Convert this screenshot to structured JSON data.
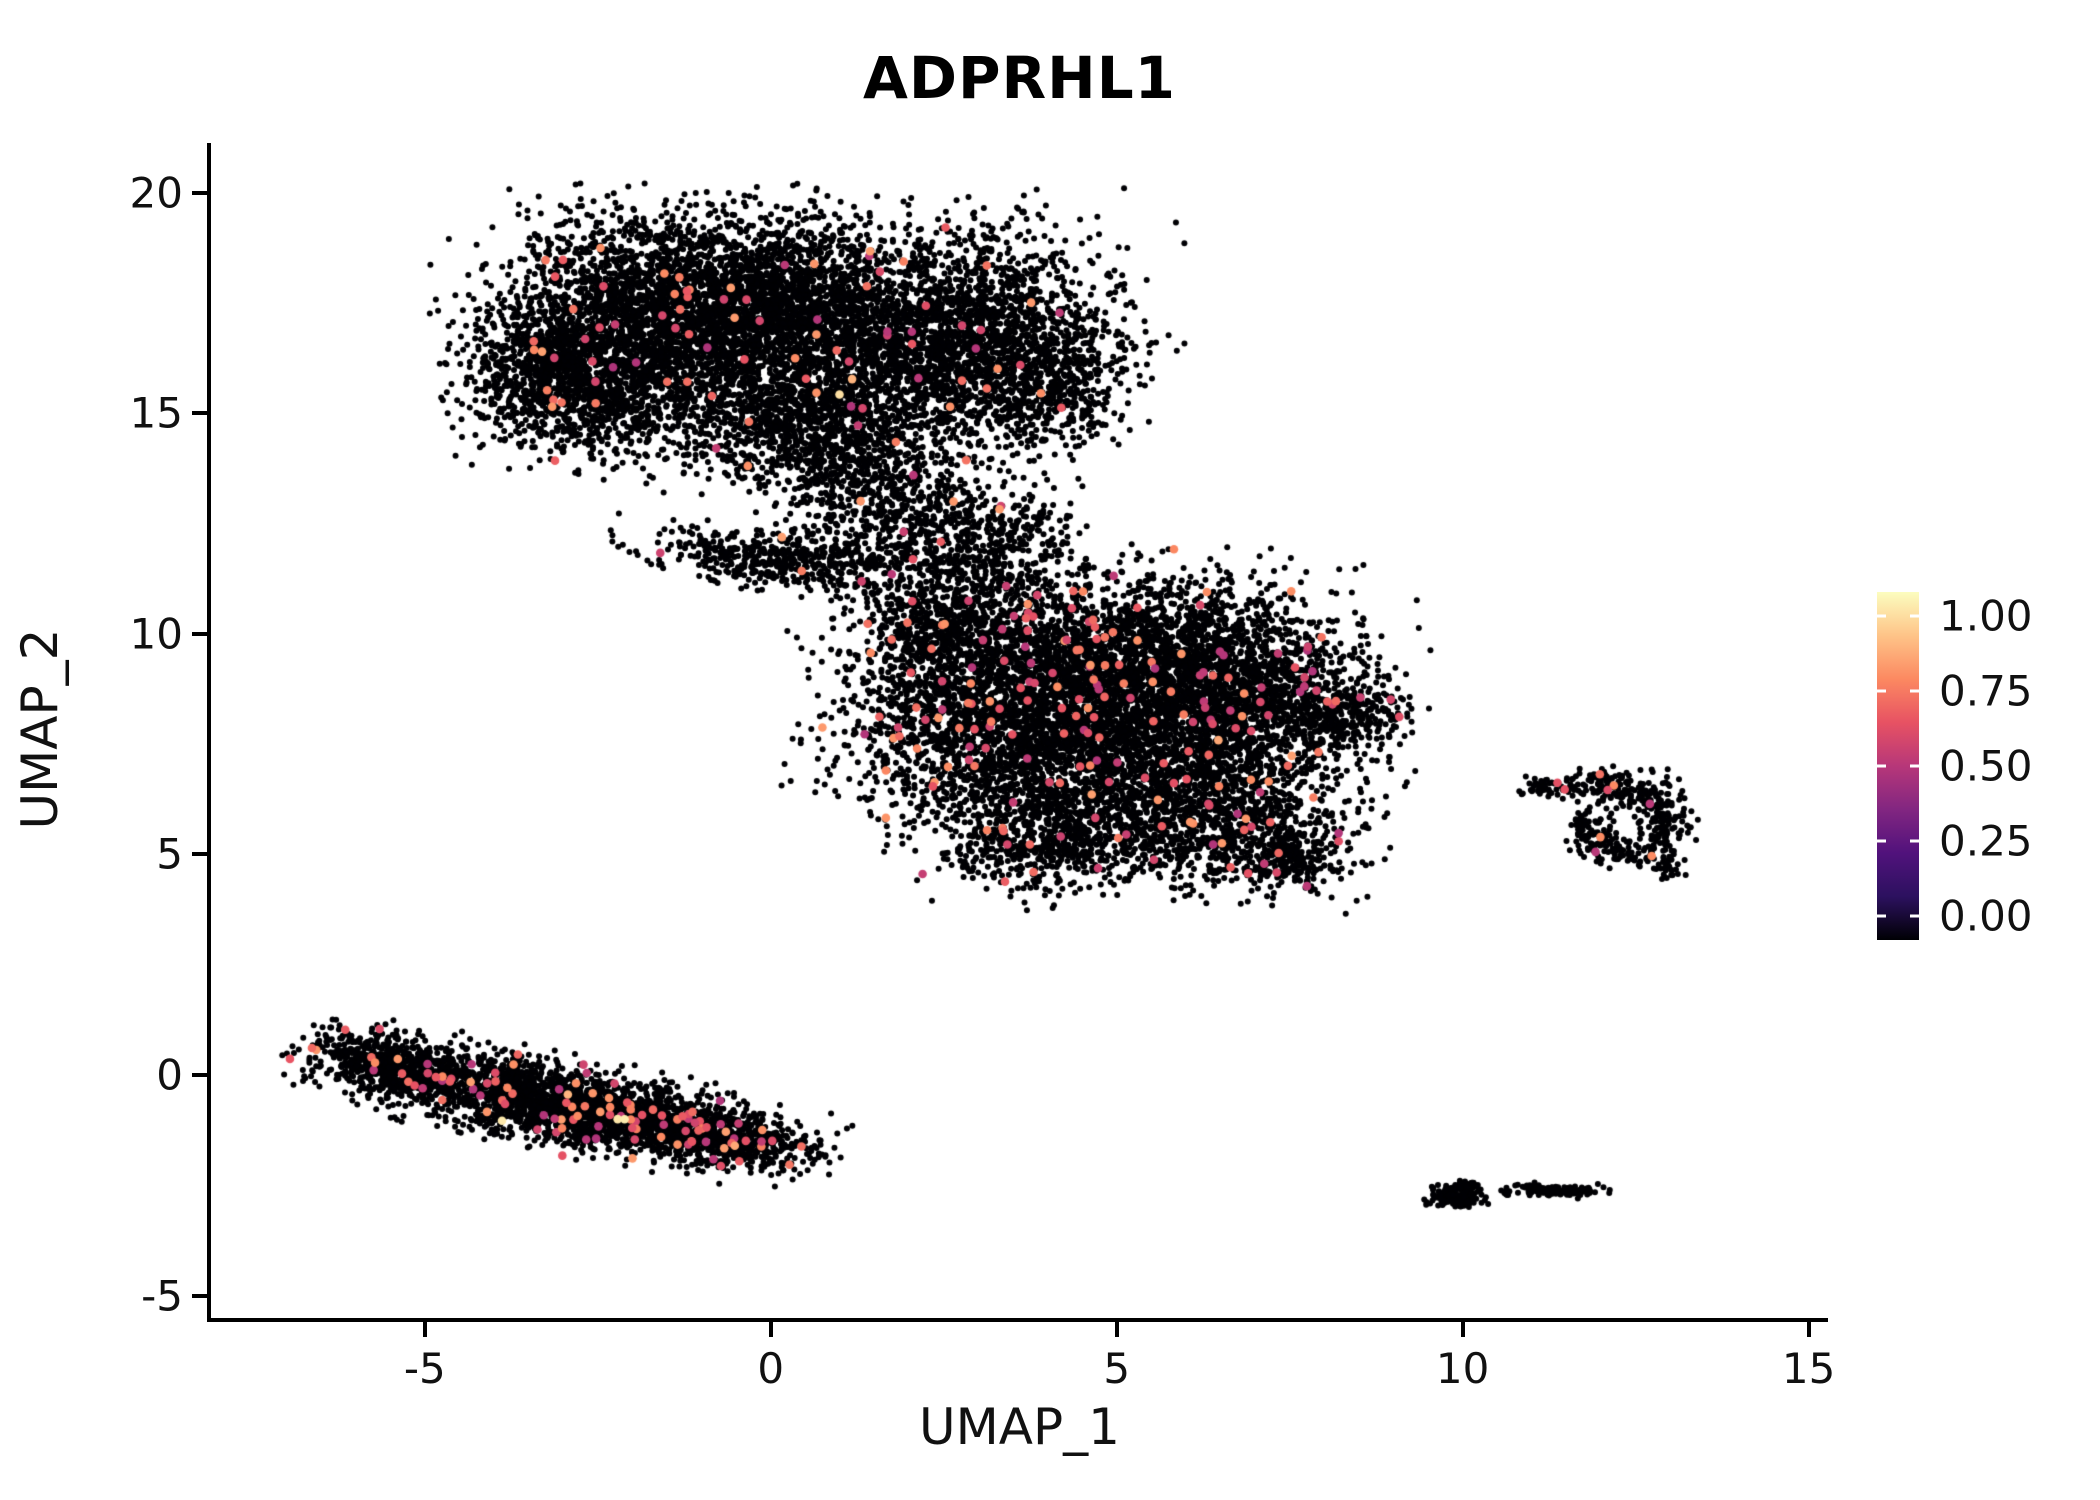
{
  "chart_data": {
    "type": "scatter",
    "title": "ADPRHL1",
    "xlabel": "UMAP_1",
    "ylabel": "UMAP_2",
    "xlim": [
      -8.09,
      15.28
    ],
    "ylim": [
      -5.51,
      21.13
    ],
    "x_ticks": [
      -5,
      0,
      5,
      10,
      15
    ],
    "x_tick_labels": [
      "-5",
      "0",
      "5",
      "10",
      "15"
    ],
    "y_ticks": [
      -5,
      0,
      5,
      10,
      15,
      20
    ],
    "y_tick_labels": [
      "-5",
      "0",
      "5",
      "10",
      "15",
      "20"
    ],
    "grid": false,
    "point_radius": 3,
    "highlight_radius": 4.3,
    "point_color_zero": "#000004",
    "seed": 1234,
    "legend": {
      "position": "right",
      "ticks": [
        "1.00",
        "0.75",
        "0.50",
        "0.25",
        "0.00"
      ],
      "tick_values": [
        1.0,
        0.75,
        0.5,
        0.25,
        0.0
      ],
      "colormap": "magma",
      "colormap_stops": [
        [
          0,
          "#000004"
        ],
        [
          0.125,
          "#2c115f"
        ],
        [
          0.25,
          "#51127c"
        ],
        [
          0.375,
          "#822681"
        ],
        [
          0.5,
          "#b73779"
        ],
        [
          0.625,
          "#e75263"
        ],
        [
          0.75,
          "#fc8961"
        ],
        [
          0.875,
          "#fec488"
        ],
        [
          1,
          "#fcfdbf"
        ]
      ]
    },
    "clusters": [
      {
        "cx": -1.8,
        "cy": 16.9,
        "sx": 1.15,
        "sy": 1.25,
        "rot": 0,
        "n": 2400,
        "cf": 0.012
      },
      {
        "cx": -0.1,
        "cy": 17.6,
        "sx": 1.3,
        "sy": 0.95,
        "rot": 0,
        "n": 2000,
        "cf": 0.012
      },
      {
        "cx": 1.3,
        "cy": 16.3,
        "sx": 1.25,
        "sy": 1.15,
        "rot": 0,
        "n": 1700,
        "cf": 0.012
      },
      {
        "cx": 3.2,
        "cy": 16.7,
        "sx": 1.0,
        "sy": 1.25,
        "rot": 0,
        "n": 1500,
        "cf": 0.012
      },
      {
        "cx": -2.7,
        "cy": 15.4,
        "sx": 0.75,
        "sy": 0.65,
        "rot": 0,
        "n": 650,
        "cf": 0.012
      },
      {
        "cx": 0.4,
        "cy": 14.7,
        "sx": 0.95,
        "sy": 0.7,
        "rot": 0,
        "n": 700,
        "cf": 0.012
      },
      {
        "cx": 1.1,
        "cy": 13.5,
        "sx": 0.55,
        "sy": 0.6,
        "rot": 0,
        "n": 280,
        "cf": 0.01
      },
      {
        "cx": 4.1,
        "cy": 15.6,
        "sx": 0.45,
        "sy": 0.75,
        "rot": 0,
        "n": 280,
        "cf": 0.01
      },
      {
        "cx": -3.2,
        "cy": 16.3,
        "sx": 0.5,
        "sy": 0.6,
        "rot": 0,
        "n": 350,
        "cf": 0.012
      },
      {
        "cx": 0.2,
        "cy": 11.7,
        "sx": 0.95,
        "sy": 0.3,
        "rot": -8,
        "n": 480,
        "cf": 0.01
      },
      {
        "cx": 1.9,
        "cy": 12.2,
        "sx": 0.8,
        "sy": 0.55,
        "rot": 0,
        "n": 320,
        "cf": 0.01
      },
      {
        "cx": 2.9,
        "cy": 11.6,
        "sx": 0.6,
        "sy": 0.7,
        "rot": 0,
        "n": 240,
        "cf": 0.012
      },
      {
        "cx": 2.3,
        "cy": 13.3,
        "sx": 0.55,
        "sy": 0.45,
        "rot": 0,
        "n": 140,
        "cf": 0.01
      },
      {
        "cx": 3.6,
        "cy": 12.4,
        "sx": 0.4,
        "sy": 0.5,
        "rot": 0,
        "n": 120,
        "cf": 0.01
      },
      {
        "cx": 3.3,
        "cy": 8.6,
        "sx": 1.15,
        "sy": 1.35,
        "rot": 0,
        "n": 2300,
        "cf": 0.022
      },
      {
        "cx": 5.4,
        "cy": 9.4,
        "sx": 1.35,
        "sy": 0.95,
        "rot": 0,
        "n": 2100,
        "cf": 0.022
      },
      {
        "cx": 5.1,
        "cy": 7.0,
        "sx": 1.5,
        "sy": 1.05,
        "rot": 0,
        "n": 2100,
        "cf": 0.022
      },
      {
        "cx": 6.9,
        "cy": 8.3,
        "sx": 0.95,
        "sy": 0.95,
        "rot": 0,
        "n": 1100,
        "cf": 0.022
      },
      {
        "cx": 6.6,
        "cy": 5.6,
        "sx": 0.9,
        "sy": 0.65,
        "rot": -15,
        "n": 750,
        "cf": 0.02
      },
      {
        "cx": 4.1,
        "cy": 5.3,
        "sx": 0.8,
        "sy": 0.55,
        "rot": 10,
        "n": 550,
        "cf": 0.02
      },
      {
        "cx": 8.3,
        "cy": 8.2,
        "sx": 0.45,
        "sy": 0.35,
        "rot": 0,
        "n": 220,
        "cf": 0.015
      },
      {
        "cx": 2.3,
        "cy": 10.3,
        "sx": 0.6,
        "sy": 0.55,
        "rot": 0,
        "n": 300,
        "cf": 0.02
      },
      {
        "cx": 7.5,
        "cy": 4.9,
        "sx": 0.35,
        "sy": 0.3,
        "rot": 0,
        "n": 120,
        "cf": 0.015
      },
      {
        "cx": 6.85,
        "cy": 3.9,
        "sx": 0.05,
        "sy": 0.05,
        "rot": 0,
        "n": 2,
        "cf": 0
      },
      {
        "cx": 12.0,
        "cy": 6.55,
        "sx": 0.33,
        "sy": 0.18,
        "rot": 0,
        "n": 110,
        "cf": 0.012
      },
      {
        "cx": 12.65,
        "cy": 6.35,
        "sx": 0.25,
        "sy": 0.22,
        "rot": 0,
        "n": 90,
        "cf": 0.012
      },
      {
        "cx": 12.9,
        "cy": 5.65,
        "sx": 0.18,
        "sy": 0.3,
        "rot": 0,
        "n": 85,
        "cf": 0.012
      },
      {
        "cx": 12.45,
        "cy": 5.1,
        "sx": 0.3,
        "sy": 0.18,
        "rot": 0,
        "n": 85,
        "cf": 0.012
      },
      {
        "cx": 11.85,
        "cy": 5.5,
        "sx": 0.18,
        "sy": 0.28,
        "rot": 0,
        "n": 85,
        "cf": 0.012
      },
      {
        "cx": 11.15,
        "cy": 6.5,
        "sx": 0.14,
        "sy": 0.1,
        "rot": 0,
        "n": 40,
        "cf": 0.02
      },
      {
        "cx": 13.0,
        "cy": 4.75,
        "sx": 0.1,
        "sy": 0.14,
        "rot": 0,
        "n": 30,
        "cf": 0
      },
      {
        "cx": -3.0,
        "cy": -0.65,
        "sx": 1.5,
        "sy": 0.42,
        "rot": -17,
        "n": 2400,
        "cf": 0.028
      },
      {
        "cx": -5.6,
        "cy": 0.25,
        "sx": 0.55,
        "sy": 0.33,
        "rot": -20,
        "n": 450,
        "cf": 0.02
      },
      {
        "cx": -0.6,
        "cy": -1.5,
        "sx": 0.55,
        "sy": 0.28,
        "rot": -12,
        "n": 380,
        "cf": 0.03
      },
      {
        "cx": -1.7,
        "cy": -1.15,
        "sx": 0.6,
        "sy": 0.3,
        "rot": -15,
        "n": 350,
        "cf": 0.03
      },
      {
        "cx": 9.9,
        "cy": -2.75,
        "sx": 0.2,
        "sy": 0.13,
        "rot": -5,
        "n": 150,
        "cf": 0
      },
      {
        "cx": 10.05,
        "cy": -2.5,
        "sx": 0.08,
        "sy": 0.06,
        "rot": 0,
        "n": 30,
        "cf": 0
      },
      {
        "cx": 11.15,
        "cy": -2.6,
        "sx": 0.23,
        "sy": 0.07,
        "rot": -3,
        "n": 80,
        "cf": 0
      },
      {
        "cx": 11.65,
        "cy": -2.62,
        "sx": 0.18,
        "sy": 0.06,
        "rot": -3,
        "n": 55,
        "cf": 0
      },
      {
        "cx": 10.62,
        "cy": -2.66,
        "sx": 0.04,
        "sy": 0.04,
        "rot": 0,
        "n": 10,
        "cf": 0
      }
    ]
  },
  "colors": {
    "background": "#ffffff",
    "axis": "#000000",
    "text": "#111111",
    "highlight_example": "#e75263"
  }
}
